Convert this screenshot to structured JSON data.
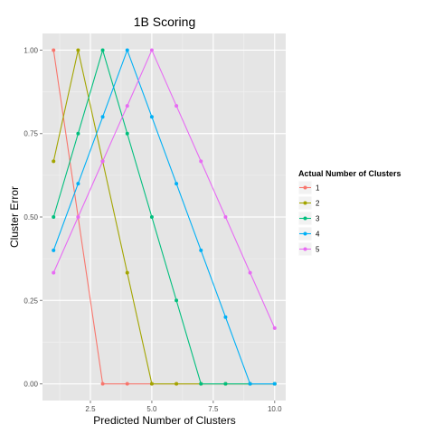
{
  "chart_data": {
    "type": "line",
    "title": "1B Scoring",
    "xlabel": "Predicted Number of Clusters",
    "ylabel": "Cluster Error",
    "xlim": [
      0.55,
      10.45
    ],
    "ylim": [
      -0.05,
      1.05
    ],
    "x_ticks": [
      2.5,
      5.0,
      7.5,
      10.0
    ],
    "x_tick_labels": [
      "2.5",
      "5.0",
      "7.5",
      "10.0"
    ],
    "y_ticks": [
      0.0,
      0.25,
      0.5,
      0.75,
      1.0
    ],
    "y_tick_labels": [
      "0.00",
      "0.25",
      "0.50",
      "0.75",
      "1.00"
    ],
    "grid": true,
    "legend": {
      "title": "Actual Number of Clusters",
      "position": "right"
    },
    "x": [
      1,
      2,
      3,
      4,
      5,
      6,
      7,
      8,
      9,
      10
    ],
    "series": [
      {
        "name": "1",
        "color": "#F8766D",
        "values": [
          1.0,
          0.5,
          0.0,
          0.0,
          0.0,
          0.0,
          0.0,
          0.0,
          0.0,
          0.0
        ]
      },
      {
        "name": "2",
        "color": "#A3A500",
        "values": [
          0.667,
          1.0,
          0.667,
          0.333,
          0.0,
          0.0,
          0.0,
          0.0,
          0.0,
          0.0
        ]
      },
      {
        "name": "3",
        "color": "#00BF7D",
        "values": [
          0.5,
          0.75,
          1.0,
          0.75,
          0.5,
          0.25,
          0.0,
          0.0,
          0.0,
          0.0
        ]
      },
      {
        "name": "4",
        "color": "#00B0F6",
        "values": [
          0.4,
          0.6,
          0.8,
          1.0,
          0.8,
          0.6,
          0.4,
          0.2,
          0.0,
          0.0
        ]
      },
      {
        "name": "5",
        "color": "#E76BF3",
        "values": [
          0.333,
          0.5,
          0.667,
          0.833,
          1.0,
          0.833,
          0.667,
          0.5,
          0.333,
          0.167
        ]
      }
    ]
  }
}
